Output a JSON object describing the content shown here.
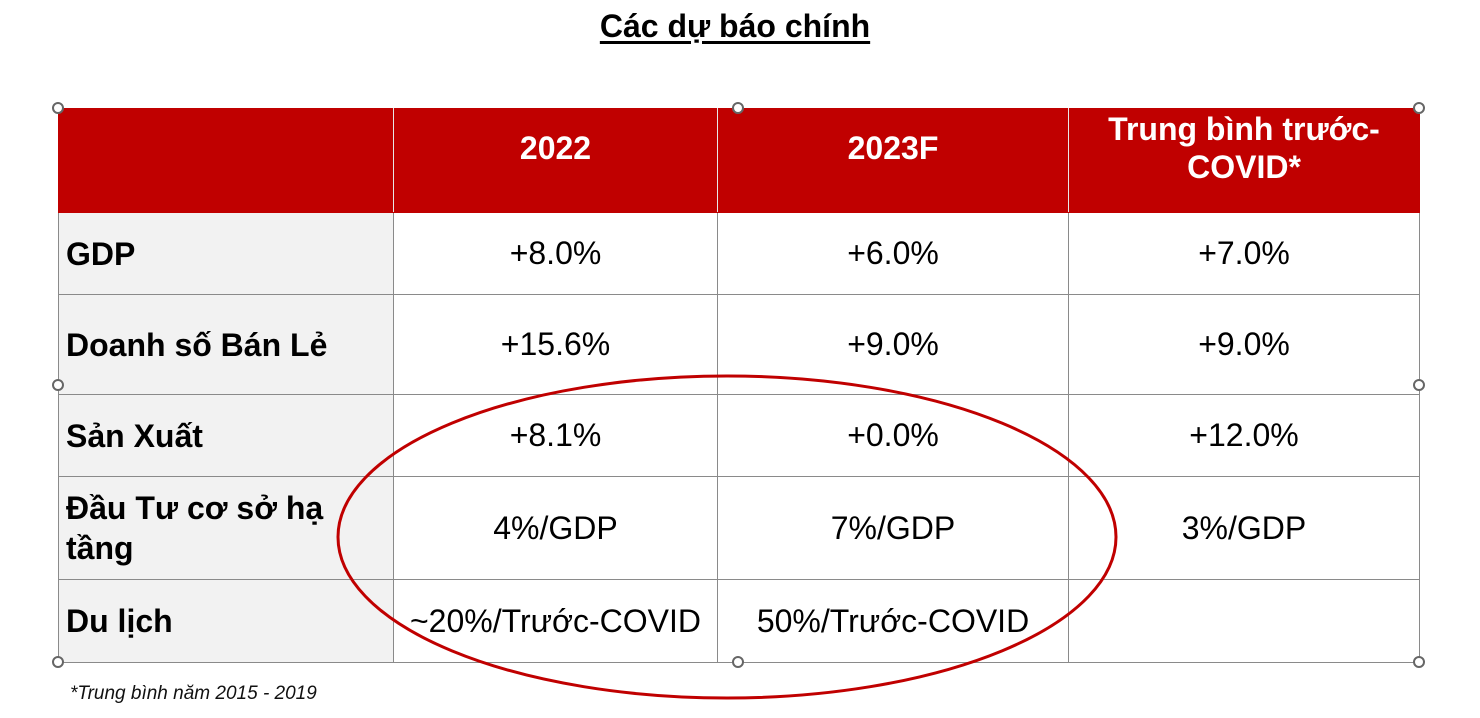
{
  "title": "Các dự báo chính",
  "table": {
    "headers": [
      "",
      "2022",
      "2023F",
      "Trung bình trước-COVID*"
    ],
    "rows": [
      {
        "label": "GDP",
        "values": [
          "+8.0%",
          "+6.0%",
          "+7.0%"
        ]
      },
      {
        "label": "Doanh số Bán Lẻ",
        "values": [
          "+15.6%",
          "+9.0%",
          "+9.0%"
        ]
      },
      {
        "label": "Sản Xuất",
        "values": [
          "+8.1%",
          "+0.0%",
          "+12.0%"
        ]
      },
      {
        "label": "Đầu Tư cơ sở hạ tầng",
        "values": [
          "4%/GDP",
          "7%/GDP",
          "3%/GDP"
        ]
      },
      {
        "label": "Du lịch",
        "values": [
          "~20%/Trước-COVID",
          "50%/Trước-COVID",
          ""
        ]
      }
    ]
  },
  "footnote": "*Trung bình năm 2015 - 2019",
  "colors": {
    "header_bg": "#c00000",
    "label_bg": "#f2f2f2",
    "highlight_ellipse": "#c00000"
  }
}
